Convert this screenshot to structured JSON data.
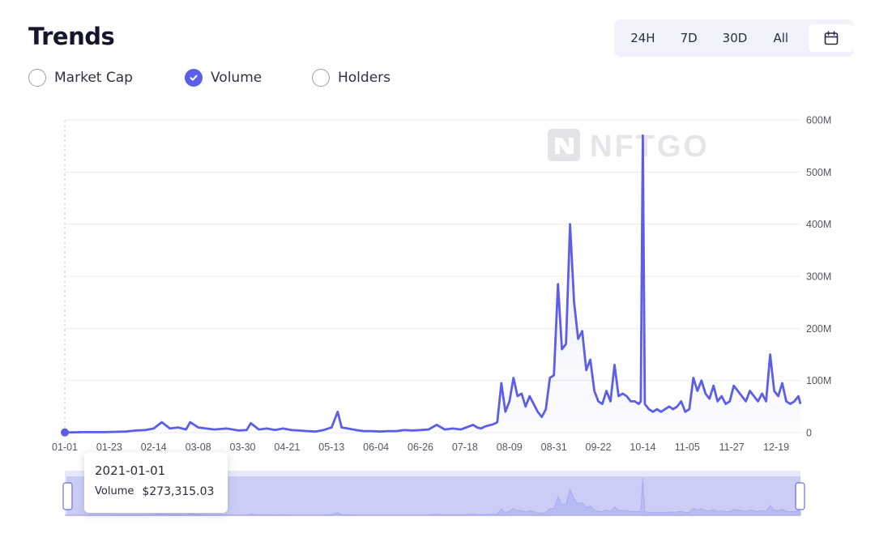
{
  "header": {
    "title": "Trends"
  },
  "ranges": [
    "24H",
    "7D",
    "30D",
    "All"
  ],
  "metrics": [
    {
      "label": "Market Cap",
      "checked": false
    },
    {
      "label": "Volume",
      "checked": true
    },
    {
      "label": "Holders",
      "checked": false
    }
  ],
  "watermark": "NFTGO",
  "tooltip": {
    "date": "2021-01-01",
    "label": "Volume",
    "value": "$273,315.03"
  },
  "colors": {
    "line": "#5b5fe8",
    "accent": "#5b5fe8",
    "navigator": "#c9cbf7"
  },
  "chart_data": {
    "type": "line",
    "ylim": [
      0,
      600
    ],
    "y_unit": "M",
    "y_ticks": [
      "0",
      "100M",
      "200M",
      "300M",
      "400M",
      "500M",
      "600M"
    ],
    "x_ticks": [
      "01-01",
      "01-23",
      "02-14",
      "03-08",
      "03-30",
      "04-21",
      "05-13",
      "06-04",
      "06-26",
      "07-18",
      "08-09",
      "08-31",
      "09-22",
      "10-14",
      "11-05",
      "11-27",
      "12-19"
    ],
    "grid": true,
    "legend": "none",
    "series": [
      {
        "x": [
          0,
          10,
          20,
          30,
          35,
          40,
          44,
          48,
          52,
          56,
          60,
          62,
          66,
          70,
          74,
          80,
          86,
          90,
          92,
          96,
          100,
          104,
          108,
          112,
          116,
          120,
          124,
          128,
          132,
          135,
          137,
          140,
          144,
          148,
          152,
          156,
          160,
          164,
          168,
          172,
          176,
          180,
          184,
          188,
          192,
          196,
          200,
          202,
          204,
          206,
          208,
          210,
          212,
          214,
          216,
          218,
          220,
          222,
          224,
          226,
          228,
          230,
          232,
          234,
          236,
          238,
          240,
          242,
          244,
          246,
          248,
          250,
          252,
          254,
          256,
          258,
          260,
          262,
          264,
          266,
          268,
          270,
          272,
          274,
          276,
          278,
          280,
          282,
          284,
          285,
          286,
          287,
          289,
          291,
          293,
          295,
          297,
          299,
          301,
          303,
          305,
          307,
          309,
          311,
          313,
          315,
          317,
          319,
          321,
          323,
          325,
          327,
          329,
          331,
          333,
          335,
          337,
          339,
          341,
          343,
          345,
          347,
          349,
          351,
          353,
          355,
          357,
          359,
          361,
          363,
          364
        ],
        "values": [
          0.3,
          1,
          1,
          2,
          4,
          5,
          8,
          20,
          8,
          10,
          6,
          20,
          10,
          8,
          6,
          8,
          4,
          5,
          18,
          6,
          8,
          5,
          8,
          5,
          4,
          3,
          2,
          5,
          10,
          40,
          10,
          8,
          5,
          3,
          3,
          2,
          3,
          3,
          5,
          4,
          5,
          6,
          15,
          6,
          8,
          6,
          12,
          15,
          10,
          8,
          12,
          14,
          16,
          20,
          95,
          40,
          60,
          105,
          70,
          75,
          50,
          70,
          55,
          40,
          30,
          45,
          105,
          110,
          285,
          160,
          170,
          400,
          250,
          180,
          195,
          120,
          140,
          80,
          60,
          55,
          80,
          60,
          130,
          70,
          75,
          70,
          60,
          60,
          55,
          60,
          570,
          55,
          45,
          40,
          45,
          40,
          45,
          50,
          45,
          50,
          60,
          40,
          45,
          105,
          80,
          100,
          75,
          65,
          90,
          60,
          70,
          55,
          60,
          90,
          80,
          70,
          60,
          80,
          70,
          60,
          75,
          60,
          150,
          80,
          70,
          95,
          60,
          55,
          60,
          70,
          55
        ]
      }
    ]
  }
}
